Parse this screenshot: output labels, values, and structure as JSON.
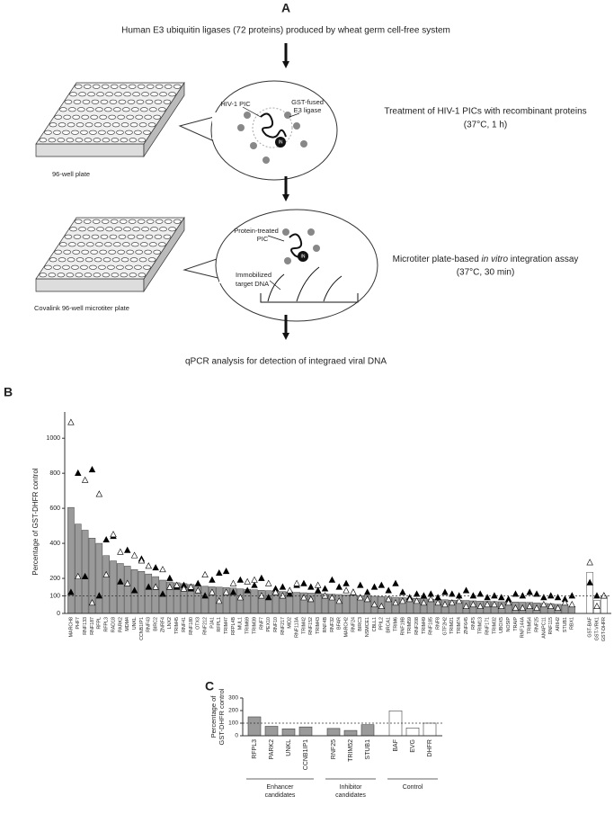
{
  "panel_a": {
    "label": "A",
    "step1": "Human E3 ubiquitin ligases (72 proteins) produced by wheat germ cell-free system",
    "bubble1": {
      "pic": "HIV-1 PIC",
      "ligase": [
        "GST-fused",
        "E3 ligase"
      ],
      "in": "IN"
    },
    "step2": [
      "Treatment of HIV-1 PICs with recombinant proteins",
      "(37°C, 1 h)"
    ],
    "plate1": "96-well plate",
    "bubble2": {
      "pic": [
        "Protein-treated",
        "PIC"
      ],
      "dna": [
        "Immobilized",
        "target DNA"
      ],
      "in": "IN"
    },
    "step3": {
      "before": "Microtiter plate-based ",
      "italic": "in vitro",
      "after": " integration assay",
      "condition": "(37°C, 30 min)"
    },
    "plate2": "Covalink 96-well microtiter plate",
    "step4": "qPCR analysis for detection of integraed viral DNA"
  },
  "chart_data": [
    {
      "type": "bar",
      "label": "B",
      "ylabel": "Percentage of GST-DHFR control",
      "categories": [
        "MARCH8",
        "PHF7",
        "RNF133",
        "RNF187",
        "RFPL",
        "RFPL3",
        "RAD18",
        "PARK2",
        "MDM4",
        "UNKL",
        "CCNB1IP1",
        "RNF43",
        "BIRC2",
        "ZNRF4",
        "LNX2",
        "TRIM45",
        "RNF41",
        "RNF180",
        "OTX3",
        "RNF212",
        "PJA1",
        "RFPL1",
        "TRIM47",
        "RFPL4B",
        "MUL1",
        "TRIM69",
        "TRIM39",
        "RNF7",
        "PEX10",
        "RNF10",
        "RNF217",
        "MID2",
        "RNF113A",
        "TRIM42",
        "RNF152",
        "TRIM43",
        "RNF4B",
        "RNF32",
        "BFAR",
        "MARCH2",
        "RNF24",
        "BIRC3",
        "NSMCE1",
        "CBLL1",
        "PPIL2",
        "BRCA1",
        "TRIM6",
        "RNF19B",
        "TRIM59",
        "RNF208",
        "TRIM49",
        "RNF185",
        "RNF8",
        "GTF2H2",
        "TRIM21",
        "TRIM74",
        "ZNF645",
        "RNF5",
        "TRIM13",
        "RNF171",
        "TRIM32",
        "UBOX5",
        "NOSIP",
        "TRAIP",
        "RNF144A",
        "TRIM54",
        "RNF25",
        "ANAPC11",
        "RNF115",
        "ARIH2",
        "STUB1",
        "RBX1",
        "GST-BAF",
        "GST-VRK1",
        "GST-DHFR"
      ],
      "values": [
        605,
        510,
        475,
        430,
        400,
        330,
        300,
        285,
        270,
        250,
        240,
        225,
        210,
        190,
        180,
        175,
        170,
        165,
        160,
        155,
        152,
        150,
        148,
        145,
        140,
        138,
        135,
        132,
        130,
        128,
        125,
        123,
        120,
        118,
        116,
        114,
        112,
        110,
        108,
        106,
        104,
        102,
        100,
        98,
        96,
        94,
        92,
        90,
        88,
        86,
        84,
        82,
        80,
        78,
        76,
        75,
        74,
        72,
        70,
        69,
        68,
        67,
        66,
        65,
        64,
        63,
        60,
        58,
        56,
        52,
        48,
        40,
        235,
        75,
        100
      ],
      "colors": [
        "#9a9a9a",
        "#9a9a9a",
        "#9a9a9a",
        "#9a9a9a",
        "#9a9a9a",
        "#9a9a9a",
        "#9a9a9a",
        "#9a9a9a",
        "#9a9a9a",
        "#9a9a9a",
        "#9a9a9a",
        "#9a9a9a",
        "#9a9a9a",
        "#9a9a9a",
        "#9a9a9a",
        "#9a9a9a",
        "#9a9a9a",
        "#9a9a9a",
        "#9a9a9a",
        "#9a9a9a",
        "#9a9a9a",
        "#9a9a9a",
        "#9a9a9a",
        "#9a9a9a",
        "#9a9a9a",
        "#9a9a9a",
        "#9a9a9a",
        "#9a9a9a",
        "#9a9a9a",
        "#9a9a9a",
        "#9a9a9a",
        "#9a9a9a",
        "#9a9a9a",
        "#9a9a9a",
        "#9a9a9a",
        "#9a9a9a",
        "#9a9a9a",
        "#9a9a9a",
        "#9a9a9a",
        "#9a9a9a",
        "#9a9a9a",
        "#9a9a9a",
        "#9a9a9a",
        "#9a9a9a",
        "#9a9a9a",
        "#9a9a9a",
        "#9a9a9a",
        "#9a9a9a",
        "#9a9a9a",
        "#9a9a9a",
        "#9a9a9a",
        "#9a9a9a",
        "#9a9a9a",
        "#9a9a9a",
        "#9a9a9a",
        "#9a9a9a",
        "#9a9a9a",
        "#9a9a9a",
        "#9a9a9a",
        "#9a9a9a",
        "#9a9a9a",
        "#9a9a9a",
        "#9a9a9a",
        "#9a9a9a",
        "#9a9a9a",
        "#9a9a9a",
        "#9a9a9a",
        "#9a9a9a",
        "#9a9a9a",
        "#9a9a9a",
        "#9a9a9a",
        "#9a9a9a",
        "#ffffff",
        "#ffffff",
        "#ffffff"
      ],
      "markers": [
        {
          "shape": "filled-triangle",
          "color": "#000000",
          "values": [
            120,
            800,
            210,
            820,
            100,
            420,
            440,
            180,
            360,
            130,
            310,
            150,
            260,
            110,
            200,
            150,
            160,
            140,
            170,
            100,
            190,
            230,
            240,
            120,
            190,
            130,
            160,
            200,
            90,
            140,
            150,
            110,
            160,
            170,
            150,
            130,
            140,
            190,
            150,
            170,
            120,
            160,
            120,
            150,
            160,
            130,
            170,
            120,
            90,
            110,
            100,
            110,
            90,
            120,
            110,
            100,
            130,
            100,
            110,
            90,
            100,
            90,
            80,
            110,
            100,
            120,
            110,
            90,
            100,
            90,
            80,
            100,
            175,
            100,
            100
          ]
        },
        {
          "shape": "open-triangle",
          "color": "#000000",
          "values": [
            1090,
            210,
            760,
            60,
            680,
            220,
            450,
            350,
            170,
            330,
            300,
            270,
            150,
            250,
            150,
            160,
            140,
            150,
            130,
            220,
            120,
            70,
            120,
            170,
            90,
            180,
            190,
            100,
            170,
            120,
            100,
            130,
            170,
            90,
            80,
            160,
            100,
            90,
            70,
            130,
            120,
            90,
            80,
            50,
            40,
            80,
            60,
            70,
            80,
            70,
            60,
            80,
            60,
            50,
            60,
            70,
            40,
            50,
            40,
            50,
            50,
            40,
            60,
            30,
            30,
            40,
            30,
            50,
            40,
            30,
            60,
            50,
            290,
            40,
            100
          ]
        }
      ],
      "ylim": [
        0,
        1150
      ],
      "yticks": [
        0,
        100,
        200,
        400,
        600,
        800,
        1000
      ],
      "reference_line": 100
    },
    {
      "type": "grouped-bar",
      "label": "C",
      "ylabel": [
        "Percentage of",
        "GST-DHFR control"
      ],
      "groups": [
        {
          "label": [
            "Enhancer",
            "candidates"
          ],
          "color": "#9a9a9a",
          "categories": [
            "RFPL3",
            "PARK2",
            "UNKL",
            "CCNB1IP1"
          ],
          "values": [
            150,
            75,
            55,
            70
          ]
        },
        {
          "label": [
            "Inhibitor",
            "candidates"
          ],
          "color": "#9a9a9a",
          "categories": [
            "RNF25",
            "TRIM52",
            "STUB1"
          ],
          "values": [
            58,
            42,
            88
          ]
        },
        {
          "label": [
            "Control"
          ],
          "color": "#ffffff",
          "categories": [
            "BAF",
            "EVG",
            "DHFR"
          ],
          "values": [
            198,
            62,
            100
          ]
        }
      ],
      "ylim": [
        0,
        300
      ],
      "yticks": [
        0,
        100,
        200,
        300
      ],
      "reference_line": 100
    }
  ]
}
